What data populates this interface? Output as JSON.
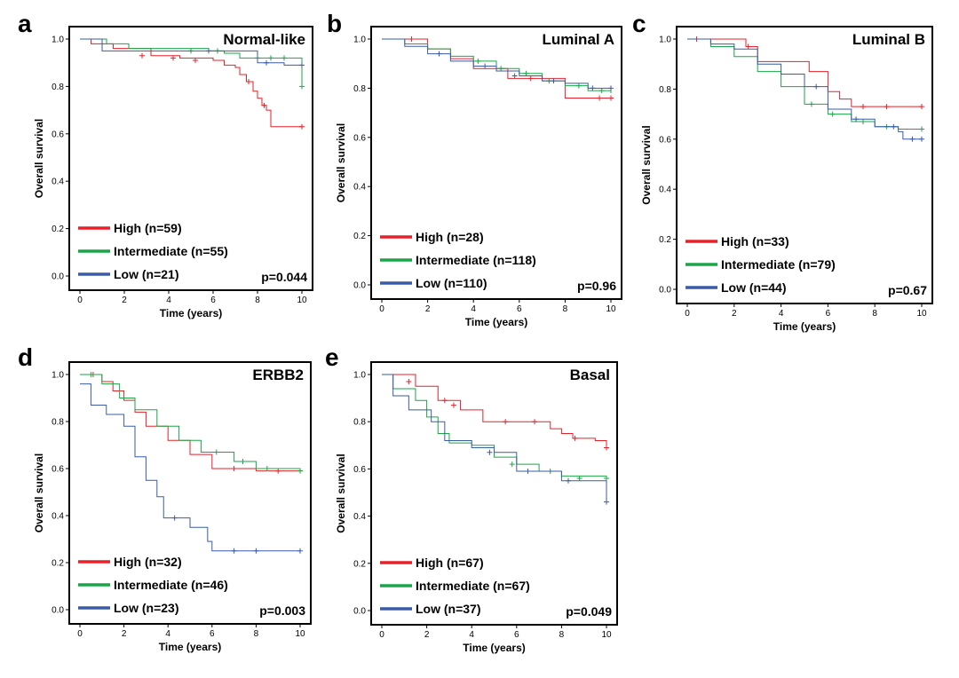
{
  "chart_data": [
    {
      "panel": "a",
      "type": "line",
      "title": "Normal-like",
      "xlabel": "Time (years)",
      "ylabel": "Overall survival",
      "xlim": [
        0,
        10
      ],
      "ylim": [
        0,
        1
      ],
      "xticks": [
        "0",
        "2",
        "4",
        "6",
        "8",
        "10"
      ],
      "yticks": [
        "0.0",
        "0.2",
        "0.4",
        "0.6",
        "0.8",
        "1.0"
      ],
      "pvalue": "p=0.044",
      "series": [
        {
          "name": "High  (n=59)",
          "color": "#e8202a",
          "x": [
            0,
            0.5,
            1.5,
            3.2,
            4.5,
            6,
            6.5,
            7,
            7.2,
            7.5,
            7.8,
            8,
            8.2,
            8.4,
            8.6,
            10
          ],
          "y": [
            1.0,
            0.98,
            0.96,
            0.93,
            0.92,
            0.91,
            0.89,
            0.88,
            0.85,
            0.82,
            0.78,
            0.75,
            0.72,
            0.7,
            0.63,
            0.63
          ],
          "censor": [
            [
              2.8,
              0.93
            ],
            [
              4.2,
              0.92
            ],
            [
              5.2,
              0.91
            ],
            [
              7.6,
              0.82
            ],
            [
              8.3,
              0.72
            ],
            [
              10,
              0.63
            ]
          ]
        },
        {
          "name": "Intermediate (n=55)",
          "color": "#1aa648",
          "x": [
            0,
            1.2,
            2.2,
            3.5,
            5.8,
            6.5,
            7.2,
            9.8,
            10
          ],
          "y": [
            1.0,
            0.98,
            0.96,
            0.96,
            0.95,
            0.94,
            0.92,
            0.92,
            0.8
          ],
          "censor": [
            [
              5,
              0.95
            ],
            [
              6.2,
              0.95
            ],
            [
              8,
              0.92
            ],
            [
              8.6,
              0.92
            ],
            [
              9.2,
              0.92
            ],
            [
              10,
              0.8
            ]
          ]
        },
        {
          "name": "Low (n=21)",
          "color": "#3a5ba8",
          "x": [
            0,
            1,
            2,
            3,
            8,
            9.2,
            10
          ],
          "y": [
            1.0,
            0.95,
            0.95,
            0.95,
            0.9,
            0.89,
            0.89
          ],
          "censor": [
            [
              5.8,
              0.95
            ],
            [
              8.4,
              0.9
            ],
            [
              10,
              0.89
            ]
          ]
        }
      ]
    },
    {
      "panel": "b",
      "type": "line",
      "title": "Luminal A",
      "xlabel": "Time (years)",
      "ylabel": "Overall survival",
      "xlim": [
        0,
        10
      ],
      "ylim": [
        0,
        1
      ],
      "xticks": [
        "0",
        "2",
        "4",
        "6",
        "8",
        "10"
      ],
      "yticks": [
        "0.0",
        "0.2",
        "0.4",
        "0.6",
        "0.8",
        "1.0"
      ],
      "pvalue": "p=0.96",
      "series": [
        {
          "name": "High  (n=28)",
          "color": "#e8202a",
          "x": [
            0,
            2,
            3,
            4,
            5.5,
            7,
            8,
            10
          ],
          "y": [
            1.0,
            0.96,
            0.92,
            0.88,
            0.84,
            0.84,
            0.76,
            0.76
          ],
          "censor": [
            [
              1.3,
              1.0
            ],
            [
              6.5,
              0.84
            ],
            [
              9.5,
              0.76
            ],
            [
              10,
              0.76
            ]
          ]
        },
        {
          "name": "Intermediate (n=118)",
          "color": "#1aa648",
          "x": [
            0,
            1,
            2,
            3,
            4,
            5,
            6,
            7,
            8,
            9,
            10
          ],
          "y": [
            1.0,
            0.98,
            0.96,
            0.93,
            0.91,
            0.88,
            0.86,
            0.83,
            0.81,
            0.79,
            0.78
          ],
          "censor": [
            [
              4.2,
              0.91
            ],
            [
              5.2,
              0.88
            ],
            [
              6.3,
              0.86
            ],
            [
              7.3,
              0.83
            ],
            [
              8.6,
              0.81
            ],
            [
              9.6,
              0.79
            ]
          ]
        },
        {
          "name": "Low (n=110)",
          "color": "#3a5ba8",
          "x": [
            0,
            1,
            2,
            3,
            4,
            5,
            6,
            7,
            8,
            9,
            10
          ],
          "y": [
            1.0,
            0.97,
            0.94,
            0.91,
            0.89,
            0.87,
            0.85,
            0.83,
            0.82,
            0.8,
            0.8
          ],
          "censor": [
            [
              2.5,
              0.94
            ],
            [
              4.5,
              0.89
            ],
            [
              5.8,
              0.85
            ],
            [
              7.5,
              0.83
            ],
            [
              9.2,
              0.8
            ],
            [
              10,
              0.8
            ]
          ]
        }
      ]
    },
    {
      "panel": "c",
      "type": "line",
      "title": "Luminal B",
      "xlabel": "Time (years)",
      "ylabel": "Overall survival",
      "xlim": [
        0,
        10
      ],
      "ylim": [
        0,
        1
      ],
      "xticks": [
        "0",
        "2",
        "4",
        "6",
        "8",
        "10"
      ],
      "yticks": [
        "0.0",
        "0.2",
        "0.4",
        "0.6",
        "0.8",
        "1.0"
      ],
      "pvalue": "p=0.67",
      "series": [
        {
          "name": "High  (n=33)",
          "color": "#e8202a",
          "x": [
            0,
            2.5,
            3,
            4.5,
            5.2,
            6,
            6.5,
            7,
            10
          ],
          "y": [
            1.0,
            0.97,
            0.91,
            0.91,
            0.87,
            0.79,
            0.76,
            0.73,
            0.73
          ],
          "censor": [
            [
              0.4,
              1.0
            ],
            [
              2.6,
              0.97
            ],
            [
              7.5,
              0.73
            ],
            [
              8.5,
              0.73
            ],
            [
              10,
              0.73
            ]
          ]
        },
        {
          "name": "Intermediate (n=79)",
          "color": "#1aa648",
          "x": [
            0,
            1,
            2,
            3,
            4,
            5,
            6,
            7,
            8,
            9,
            10
          ],
          "y": [
            1.0,
            0.97,
            0.93,
            0.87,
            0.81,
            0.74,
            0.7,
            0.67,
            0.65,
            0.64,
            0.64
          ],
          "censor": [
            [
              5.3,
              0.74
            ],
            [
              6.2,
              0.7
            ],
            [
              7.5,
              0.67
            ],
            [
              8.5,
              0.65
            ],
            [
              10,
              0.64
            ]
          ]
        },
        {
          "name": "Low (n=44)",
          "color": "#3a5ba8",
          "x": [
            0,
            1,
            2,
            3,
            4,
            5,
            6,
            7,
            8,
            9,
            9.2,
            10
          ],
          "y": [
            1.0,
            0.98,
            0.96,
            0.9,
            0.86,
            0.81,
            0.72,
            0.68,
            0.65,
            0.63,
            0.6,
            0.6
          ],
          "censor": [
            [
              5.5,
              0.81
            ],
            [
              7.2,
              0.68
            ],
            [
              8.8,
              0.65
            ],
            [
              9.6,
              0.6
            ],
            [
              10,
              0.6
            ]
          ]
        }
      ]
    },
    {
      "panel": "d",
      "type": "line",
      "title": "ERBB2",
      "xlabel": "Time (years)",
      "ylabel": "Overall survival",
      "xlim": [
        0,
        10
      ],
      "ylim": [
        0,
        1
      ],
      "xticks": [
        "0",
        "2",
        "4",
        "6",
        "8",
        "10"
      ],
      "yticks": [
        "0.0",
        "0.2",
        "0.4",
        "0.6",
        "0.8",
        "1.0"
      ],
      "pvalue": "p=0.003",
      "series": [
        {
          "name": "High  (n=32)",
          "color": "#e8202a",
          "x": [
            0,
            1.0,
            1.5,
            2.0,
            2.5,
            3.0,
            4.0,
            5.0,
            6.0,
            8.0,
            10
          ],
          "y": [
            1.0,
            0.97,
            0.93,
            0.89,
            0.84,
            0.78,
            0.72,
            0.66,
            0.6,
            0.59,
            0.59
          ],
          "censor": [
            [
              0.6,
              1.0
            ],
            [
              7.0,
              0.6
            ],
            [
              9.0,
              0.59
            ],
            [
              10,
              0.59
            ]
          ]
        },
        {
          "name": "Intermediate (n=46)",
          "color": "#1aa648",
          "x": [
            0,
            1.0,
            1.8,
            2.5,
            3.5,
            4.5,
            5.5,
            7.0,
            8.0,
            10
          ],
          "y": [
            1.0,
            0.96,
            0.9,
            0.85,
            0.78,
            0.72,
            0.67,
            0.63,
            0.6,
            0.59
          ],
          "censor": [
            [
              0.5,
              1.0
            ],
            [
              6.2,
              0.67
            ],
            [
              7.4,
              0.63
            ],
            [
              8.5,
              0.6
            ],
            [
              10,
              0.59
            ]
          ]
        },
        {
          "name": "Low (n=23)",
          "color": "#3a5ba8",
          "x": [
            0,
            0.5,
            1.2,
            2.0,
            2.5,
            3.0,
            3.5,
            3.8,
            4.5,
            5.0,
            5.8,
            6.0,
            10
          ],
          "y": [
            0.96,
            0.87,
            0.83,
            0.78,
            0.65,
            0.55,
            0.48,
            0.39,
            0.39,
            0.35,
            0.29,
            0.25,
            0.25
          ],
          "censor": [
            [
              4.3,
              0.39
            ],
            [
              7.0,
              0.25
            ],
            [
              8.0,
              0.25
            ],
            [
              10,
              0.25
            ]
          ]
        }
      ]
    },
    {
      "panel": "e",
      "type": "line",
      "title": "Basal",
      "xlabel": "Time (years)",
      "ylabel": "Overall survival",
      "xlim": [
        0,
        10
      ],
      "ylim": [
        0,
        1
      ],
      "xticks": [
        "0",
        "2",
        "4",
        "6",
        "8",
        "10"
      ],
      "yticks": [
        "0.0",
        "0.2",
        "0.4",
        "0.6",
        "0.8",
        "1.0"
      ],
      "pvalue": "p=0.049",
      "series": [
        {
          "name": "High  (n=67)",
          "color": "#e8202a",
          "x": [
            0,
            1.5,
            2.5,
            3.5,
            4.5,
            6,
            7.5,
            8.0,
            8.5,
            9.5,
            10
          ],
          "y": [
            1.0,
            0.95,
            0.89,
            0.85,
            0.8,
            0.8,
            0.77,
            0.75,
            0.73,
            0.72,
            0.69
          ],
          "censor": [
            [
              1.2,
              0.97
            ],
            [
              2.8,
              0.89
            ],
            [
              3.2,
              0.87
            ],
            [
              5.5,
              0.8
            ],
            [
              6.8,
              0.8
            ],
            [
              8.6,
              0.73
            ],
            [
              10,
              0.69
            ]
          ]
        },
        {
          "name": "Intermediate (n=67)",
          "color": "#1aa648",
          "x": [
            0,
            0.5,
            1.5,
            2,
            2.5,
            3,
            4,
            5,
            6,
            7,
            8,
            10
          ],
          "y": [
            1.0,
            0.94,
            0.89,
            0.82,
            0.75,
            0.71,
            0.7,
            0.65,
            0.62,
            0.59,
            0.57,
            0.56
          ],
          "censor": [
            [
              5.8,
              0.62
            ],
            [
              7.5,
              0.59
            ],
            [
              8.8,
              0.56
            ],
            [
              10,
              0.56
            ]
          ]
        },
        {
          "name": "Low (n=37)",
          "color": "#3a5ba8",
          "x": [
            0,
            0.5,
            1.2,
            2.2,
            2.8,
            4.0,
            5.0,
            6.0,
            7.0,
            8.0,
            9.5,
            10
          ],
          "y": [
            1.0,
            0.91,
            0.85,
            0.8,
            0.72,
            0.69,
            0.67,
            0.59,
            0.59,
            0.55,
            0.55,
            0.46
          ],
          "censor": [
            [
              4.8,
              0.67
            ],
            [
              6.5,
              0.59
            ],
            [
              8.3,
              0.55
            ],
            [
              10,
              0.46
            ]
          ]
        }
      ]
    }
  ]
}
